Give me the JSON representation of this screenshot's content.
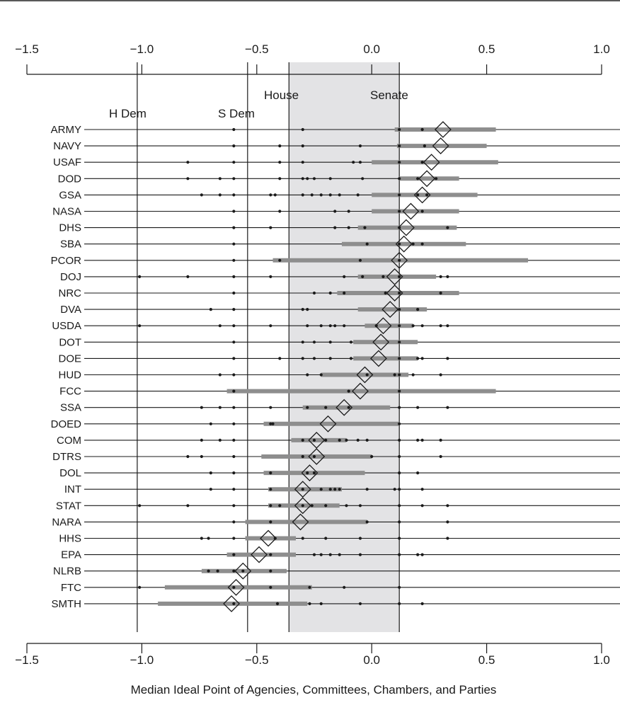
{
  "chart_data": {
    "type": "dot-interval",
    "xlabel": "Median Ideal Point of Agencies, Committees, Chambers, and Parties",
    "xlim": [
      -1.5,
      1.0
    ],
    "ticks": [
      {
        "value": -1.5,
        "label": "−1.5"
      },
      {
        "value": -1.0,
        "label": "−1.0"
      },
      {
        "value": -0.5,
        "label": "−0.5"
      },
      {
        "value": 0.0,
        "label": "0.0"
      },
      {
        "value": 0.5,
        "label": "0.5"
      },
      {
        "value": 1.0,
        "label": "1.0"
      }
    ],
    "reference_lines": [
      {
        "label": "H Dem",
        "value": -1.02
      },
      {
        "label": "S Dem",
        "value": -0.54
      },
      {
        "label": "House",
        "value": -0.36
      },
      {
        "label": "Senate",
        "value": 0.12
      }
    ],
    "shaded_band": [
      -0.36,
      0.12
    ],
    "agencies": [
      {
        "name": "ARMY",
        "median": 0.31,
        "interval": [
          0.1,
          0.54
        ],
        "committees": [
          -0.6,
          -0.3,
          0.12,
          0.22
        ]
      },
      {
        "name": "NAVY",
        "median": 0.3,
        "interval": [
          0.11,
          0.5
        ],
        "committees": [
          -0.6,
          -0.4,
          -0.3,
          -0.05,
          0.12,
          0.23
        ]
      },
      {
        "name": "USAF",
        "median": 0.26,
        "interval": [
          0.0,
          0.55
        ],
        "committees": [
          -0.8,
          -0.6,
          -0.4,
          -0.3,
          -0.08,
          -0.05,
          0.12,
          0.22
        ]
      },
      {
        "name": "DOD",
        "median": 0.24,
        "interval": [
          0.12,
          0.38
        ],
        "committees": [
          -0.8,
          -0.66,
          -0.6,
          -0.4,
          -0.3,
          -0.28,
          -0.25,
          -0.18,
          -0.04,
          0.12,
          0.2,
          0.28
        ]
      },
      {
        "name": "GSA",
        "median": 0.22,
        "interval": [
          0.0,
          0.46
        ],
        "committees": [
          -0.74,
          -0.66,
          -0.6,
          -0.44,
          -0.42,
          -0.3,
          -0.26,
          -0.22,
          -0.18,
          -0.14,
          -0.06,
          0.12,
          0.2,
          0.24
        ]
      },
      {
        "name": "NASA",
        "median": 0.17,
        "interval": [
          0.0,
          0.38
        ],
        "committees": [
          -0.6,
          -0.4,
          -0.16,
          -0.1,
          0.12,
          0.22
        ]
      },
      {
        "name": "DHS",
        "median": 0.15,
        "interval": [
          -0.06,
          0.37
        ],
        "committees": [
          -0.6,
          -0.44,
          -0.16,
          -0.1,
          -0.03,
          0.12,
          0.33
        ]
      },
      {
        "name": "SBA",
        "median": 0.14,
        "interval": [
          -0.13,
          0.41
        ],
        "committees": [
          -0.6,
          -0.02,
          0.12,
          0.18,
          0.22
        ]
      },
      {
        "name": "PCOR",
        "median": 0.12,
        "interval": [
          -0.43,
          0.68
        ],
        "committees": [
          -0.6,
          -0.4,
          -0.05,
          0.12
        ]
      },
      {
        "name": "DOJ",
        "median": 0.1,
        "interval": [
          -0.06,
          0.28
        ],
        "committees": [
          -1.01,
          -0.8,
          -0.6,
          -0.44,
          -0.12,
          -0.04,
          0.05,
          0.12,
          0.3,
          0.33
        ]
      },
      {
        "name": "NRC",
        "median": 0.1,
        "interval": [
          -0.15,
          0.38
        ],
        "committees": [
          -0.6,
          -0.25,
          -0.18,
          -0.12,
          0.06,
          0.12,
          0.3
        ]
      },
      {
        "name": "DVA",
        "median": 0.08,
        "interval": [
          -0.06,
          0.24
        ],
        "committees": [
          -0.7,
          -0.6,
          -0.3,
          -0.28,
          0.12,
          0.2
        ]
      },
      {
        "name": "USDA",
        "median": 0.05,
        "interval": [
          -0.03,
          0.18
        ],
        "committees": [
          -1.01,
          -0.66,
          -0.6,
          -0.44,
          -0.28,
          -0.22,
          -0.18,
          -0.16,
          -0.12,
          0.02,
          0.12,
          0.18,
          0.22,
          0.3,
          0.33
        ]
      },
      {
        "name": "DOT",
        "median": 0.04,
        "interval": [
          -0.08,
          0.2
        ],
        "committees": [
          -0.6,
          -0.3,
          -0.25,
          -0.18,
          -0.09,
          0.12
        ]
      },
      {
        "name": "DOE",
        "median": 0.03,
        "interval": [
          -0.08,
          0.2
        ],
        "committees": [
          -0.6,
          -0.4,
          -0.3,
          -0.25,
          -0.18,
          -0.09,
          0.12,
          0.2,
          0.22,
          0.33
        ]
      },
      {
        "name": "HUD",
        "median": -0.03,
        "interval": [
          -0.22,
          0.16
        ],
        "committees": [
          -0.66,
          -0.6,
          -0.28,
          -0.22,
          -0.02,
          0.1,
          0.12,
          0.18,
          0.3
        ]
      },
      {
        "name": "FCC",
        "median": -0.05,
        "interval": [
          -0.63,
          0.54
        ],
        "committees": [
          -0.6,
          -0.1,
          0.12
        ]
      },
      {
        "name": "SSA",
        "median": -0.12,
        "interval": [
          -0.3,
          0.08
        ],
        "committees": [
          -0.74,
          -0.66,
          -0.6,
          -0.44,
          -0.28,
          -0.2,
          -0.1,
          0.12,
          0.2,
          0.33
        ]
      },
      {
        "name": "DOED",
        "median": -0.19,
        "interval": [
          -0.47,
          0.12
        ],
        "committees": [
          -0.7,
          -0.6,
          -0.44,
          -0.43,
          0.12
        ]
      },
      {
        "name": "COM",
        "median": -0.24,
        "interval": [
          -0.35,
          -0.11
        ],
        "committees": [
          -0.74,
          -0.66,
          -0.6,
          -0.3,
          -0.25,
          -0.2,
          -0.14,
          -0.11,
          -0.06,
          -0.02,
          0.12,
          0.2,
          0.22,
          0.3
        ]
      },
      {
        "name": "DTRS",
        "median": -0.24,
        "interval": [
          -0.48,
          0.0
        ],
        "committees": [
          -0.8,
          -0.74,
          -0.6,
          -0.3,
          -0.25,
          0.0,
          0.12,
          0.3
        ]
      },
      {
        "name": "DOL",
        "median": -0.27,
        "interval": [
          -0.47,
          -0.03
        ],
        "committees": [
          -0.7,
          -0.6,
          -0.44,
          -0.28,
          -0.25,
          0.12,
          0.2
        ]
      },
      {
        "name": "INT",
        "median": -0.3,
        "interval": [
          -0.45,
          -0.13
        ],
        "committees": [
          -0.7,
          -0.6,
          -0.44,
          -0.3,
          -0.22,
          -0.18,
          -0.16,
          -0.14,
          -0.02,
          0.1,
          0.12,
          0.22
        ]
      },
      {
        "name": "STAT",
        "median": -0.3,
        "interval": [
          -0.45,
          -0.14
        ],
        "committees": [
          -1.01,
          -0.8,
          -0.6,
          -0.44,
          -0.4,
          -0.3,
          -0.26,
          -0.2,
          -0.11,
          -0.05,
          0.12,
          0.22,
          0.33
        ]
      },
      {
        "name": "NARA",
        "median": -0.31,
        "interval": [
          -0.55,
          -0.02
        ],
        "committees": [
          -0.6,
          -0.44,
          -0.02,
          0.12,
          0.33
        ]
      },
      {
        "name": "HHS",
        "median": -0.45,
        "interval": [
          -0.55,
          -0.33
        ],
        "committees": [
          -0.74,
          -0.71,
          -0.6,
          -0.42,
          -0.3,
          -0.2,
          -0.05,
          0.12,
          0.33
        ]
      },
      {
        "name": "EPA",
        "median": -0.49,
        "interval": [
          -0.63,
          -0.33
        ],
        "committees": [
          -0.6,
          -0.44,
          -0.25,
          -0.22,
          -0.18,
          -0.14,
          -0.05,
          0.12,
          0.2,
          0.22
        ]
      },
      {
        "name": "NLRB",
        "median": -0.56,
        "interval": [
          -0.74,
          -0.37
        ],
        "committees": [
          -0.71,
          -0.67,
          -0.6,
          -0.56,
          -0.44
        ]
      },
      {
        "name": "FTC",
        "median": -0.59,
        "interval": [
          -0.9,
          -0.26
        ],
        "committees": [
          -1.01,
          -0.6,
          -0.44,
          -0.27,
          -0.12,
          0.12
        ]
      },
      {
        "name": "SMTH",
        "median": -0.61,
        "interval": [
          -0.93,
          -0.28
        ],
        "committees": [
          -0.6,
          -0.41,
          -0.27,
          -0.22,
          -0.05,
          0.12,
          0.22
        ]
      }
    ]
  }
}
